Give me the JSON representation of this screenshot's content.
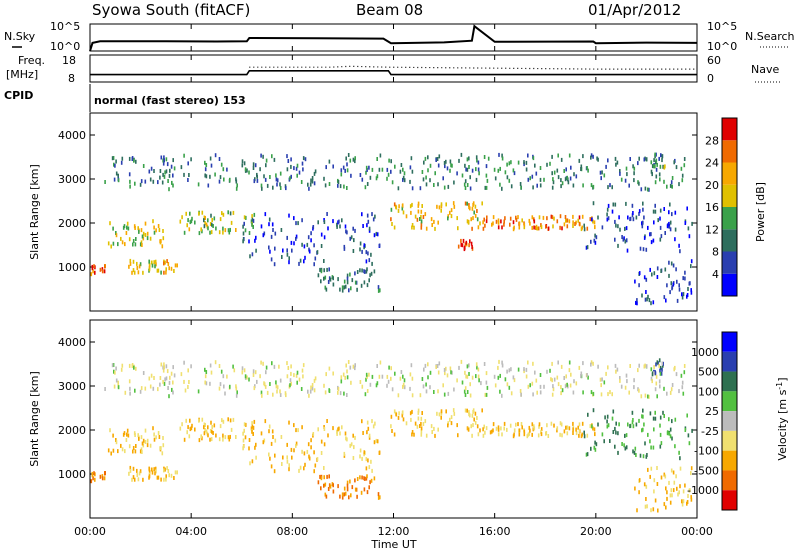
{
  "header": {
    "title": "Syowa South (fitACF)",
    "beam": "Beam 08",
    "date": "01/Apr/2012"
  },
  "noise_panel": {
    "left_label": "N.Sky",
    "left_ticks": [
      "10^5",
      "10^0"
    ],
    "right_label": "N.Search",
    "right_ticks": [
      "10^5",
      "10^0"
    ]
  },
  "freq_panel": {
    "left_label_1": "Freq.",
    "left_label_2": "[MHz]",
    "left_ticks": [
      "18",
      "8"
    ],
    "right_label": "Nave",
    "right_ticks": [
      "60",
      "0"
    ]
  },
  "cpid": {
    "label": "CPID",
    "text": "normal (fast stereo) 153"
  },
  "x_ticks": [
    "00:00",
    "04:00",
    "08:00",
    "12:00",
    "16:00",
    "20:00",
    "00:00"
  ],
  "x_label": "Time UT",
  "colors": {
    "power_scale": [
      "#0000ff",
      "#2a3fb0",
      "#2e6e5e",
      "#3aa14a",
      "#e0c000",
      "#f7a800",
      "#f06a00",
      "#e00000"
    ],
    "velocity_scale": [
      "#e00000",
      "#f06a00",
      "#f7a800",
      "#f0e070",
      "#bcbcbc",
      "#52c040",
      "#2e7050",
      "#2a3fb0",
      "#0000ff"
    ]
  },
  "chart_data": [
    {
      "type": "line",
      "name": "noise",
      "x_range": [
        0,
        24
      ],
      "x_units": "hours UT",
      "series": [
        {
          "legend": "N.Sky",
          "x": [
            0.0,
            0.1,
            0.4,
            1.0,
            3.0,
            5.0,
            6.2,
            6.3,
            9.0,
            11.6,
            11.9,
            14.0,
            15.1,
            15.2,
            16.0,
            19.9,
            20.0,
            22.0,
            24.0
          ],
          "y_log10": [
            0.0,
            1.5,
            1.8,
            1.8,
            1.8,
            1.75,
            1.8,
            2.4,
            2.35,
            2.3,
            1.45,
            1.6,
            1.9,
            4.6,
            1.7,
            1.75,
            1.45,
            1.55,
            1.5
          ]
        }
      ]
    },
    {
      "type": "line",
      "name": "frequency_nave",
      "x_range": [
        0,
        24
      ],
      "series": [
        {
          "legend": "Freq",
          "x": [
            0.0,
            6.2,
            6.3,
            11.8,
            11.9,
            24.0
          ],
          "y_mhz": [
            9.8,
            9.8,
            11.8,
            11.8,
            9.8,
            9.8
          ]
        },
        {
          "legend": "Nave",
          "x": [
            6.3,
            9.5,
            10.3,
            11.8,
            20.0,
            24.0
          ],
          "y": [
            34,
            34,
            37,
            34,
            28,
            28
          ]
        }
      ]
    },
    {
      "type": "scatter",
      "name": "power",
      "xlabel": "",
      "ylabel": "Slant Range [km]",
      "x_range": [
        0,
        24
      ],
      "ylim": [
        0,
        4500
      ],
      "y_ticks": [
        "1000",
        "2000",
        "3000",
        "4000"
      ],
      "colorbar": {
        "label": "Power [dB]",
        "ticks": [
          "4",
          "8",
          "12",
          "16",
          "20",
          "24",
          "28"
        ],
        "range": [
          0,
          32
        ]
      },
      "clusters": [
        {
          "x": [
            0.0,
            0.6
          ],
          "y": [
            880,
            1080
          ],
          "value": 28
        },
        {
          "x": [
            0.7,
            3.0
          ],
          "y": [
            1500,
            2100
          ],
          "value": 18
        },
        {
          "x": [
            1.5,
            3.5
          ],
          "y": [
            900,
            1200
          ],
          "value": 20
        },
        {
          "x": [
            3.5,
            6.5
          ],
          "y": [
            1800,
            2300
          ],
          "value": 16
        },
        {
          "x": [
            6.0,
            11.5
          ],
          "y": [
            1100,
            2300
          ],
          "value": 6
        },
        {
          "x": [
            9.0,
            11.5
          ],
          "y": [
            500,
            1000
          ],
          "value": 10
        },
        {
          "x": [
            11.8,
            15.5
          ],
          "y": [
            1900,
            2500
          ],
          "value": 20
        },
        {
          "x": [
            14.5,
            15.2
          ],
          "y": [
            1450,
            1650
          ],
          "value": 28
        },
        {
          "x": [
            15.5,
            20.0
          ],
          "y": [
            1900,
            2200
          ],
          "value": 24
        },
        {
          "x": [
            19.5,
            23.8
          ],
          "y": [
            1400,
            2500
          ],
          "value": 6
        },
        {
          "x": [
            21.5,
            23.8
          ],
          "y": [
            200,
            1200
          ],
          "value": 6
        },
        {
          "x": [
            22.2,
            22.7
          ],
          "y": [
            3300,
            3650
          ],
          "value": 12
        },
        {
          "x": [
            0.5,
            23.5
          ],
          "y": [
            2800,
            3600
          ],
          "value": 10
        }
      ]
    },
    {
      "type": "scatter",
      "name": "velocity",
      "xlabel": "Time UT",
      "ylabel": "Slant Range [km]",
      "x_range": [
        0,
        24
      ],
      "ylim": [
        0,
        4500
      ],
      "y_ticks": [
        "1000",
        "2000",
        "3000",
        "4000"
      ],
      "colorbar": {
        "label": "Velocity [m s^-1]",
        "ticks": [
          "1000",
          "500",
          "100",
          "25",
          "-25",
          "-100",
          "-500",
          "-1000"
        ]
      },
      "clusters": [
        {
          "x": [
            0.0,
            0.6
          ],
          "y": [
            880,
            1080
          ],
          "value": -500
        },
        {
          "x": [
            0.7,
            3.0
          ],
          "y": [
            1500,
            2100
          ],
          "value": -100
        },
        {
          "x": [
            1.5,
            3.5
          ],
          "y": [
            900,
            1200
          ],
          "value": -100
        },
        {
          "x": [
            3.5,
            6.5
          ],
          "y": [
            1800,
            2300
          ],
          "value": -100
        },
        {
          "x": [
            6.0,
            11.5
          ],
          "y": [
            1100,
            2300
          ],
          "value": -100
        },
        {
          "x": [
            9.0,
            11.5
          ],
          "y": [
            500,
            1000
          ],
          "value": -500
        },
        {
          "x": [
            11.8,
            15.5
          ],
          "y": [
            1900,
            2500
          ],
          "value": -100
        },
        {
          "x": [
            15.5,
            20.0
          ],
          "y": [
            1900,
            2200
          ],
          "value": -100
        },
        {
          "x": [
            19.5,
            23.8
          ],
          "y": [
            1400,
            2500
          ],
          "value": 100
        },
        {
          "x": [
            21.5,
            23.8
          ],
          "y": [
            200,
            1200
          ],
          "value": -100
        },
        {
          "x": [
            22.2,
            22.7
          ],
          "y": [
            3300,
            3650
          ],
          "value": 500
        },
        {
          "x": [
            0.5,
            23.5
          ],
          "y": [
            2800,
            3600
          ],
          "value": -25
        }
      ]
    }
  ]
}
